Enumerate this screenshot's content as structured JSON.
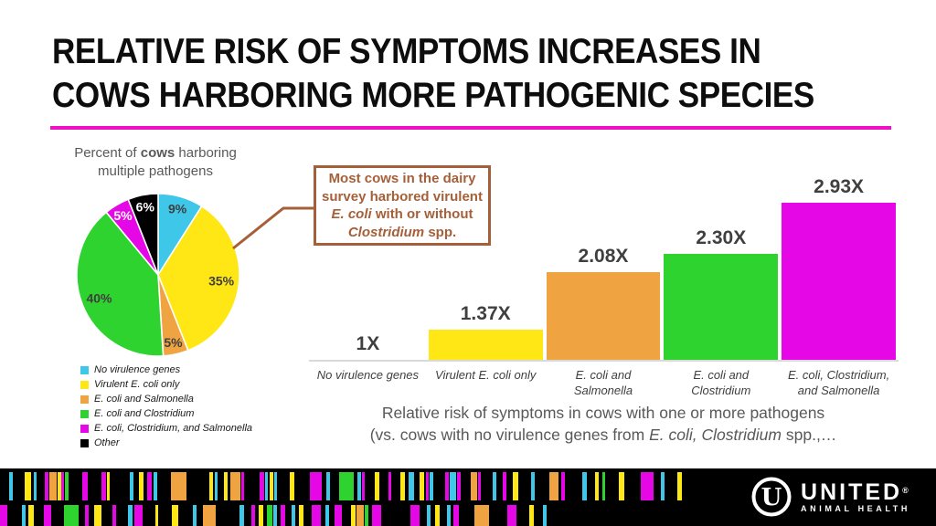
{
  "colors": {
    "cyan": "#3EC7E8",
    "yellow": "#FFE615",
    "orange": "#F0A441",
    "green": "#2FD32F",
    "magenta": "#E607E6",
    "black": "#000000",
    "brown": "#A5603A",
    "underline": "#F00FC4",
    "title_text": "#0D0D0D",
    "gray_text": "#595959",
    "dark_text": "#3F3F3F",
    "baseline": "#D9D9D9",
    "footer_bg": "#000000",
    "white": "#FFFFFF"
  },
  "title": {
    "line1": "RELATIVE RISK OF SYMPTOMS INCREASES IN",
    "line2": "COWS HARBORING MORE PATHOGENIC SPECIES"
  },
  "pie_title_lines": [
    [
      [
        "Percent of ",
        ""
      ],
      [
        "cows",
        "b"
      ],
      [
        " harboring",
        ""
      ]
    ],
    [
      [
        "multiple pathogens",
        ""
      ]
    ]
  ],
  "callout_lines": [
    [
      [
        "Most cows in the dairy",
        ""
      ]
    ],
    [
      [
        "survey harbored virulent",
        ""
      ]
    ],
    [
      [
        "E. coli",
        "i"
      ],
      [
        " with or without",
        ""
      ]
    ],
    [
      [
        "Clostridium",
        "i"
      ],
      [
        " spp.",
        ""
      ]
    ]
  ],
  "caption_lines": [
    [
      [
        "Relative risk of symptoms in cows with one or more pathogens",
        ""
      ]
    ],
    [
      [
        "(vs. cows with no virulence genes from ",
        ""
      ],
      [
        "E. coli, Clostridium",
        "i"
      ],
      [
        " spp.,…",
        ""
      ]
    ]
  ],
  "chart_data": [
    {
      "type": "pie",
      "title": "Percent of cows harboring multiple pathogens",
      "value_suffix": "%",
      "legend_position": "bottom-left",
      "slices": [
        {
          "label": "No virulence genes",
          "value": 9,
          "color": "cyan",
          "text_color": "#3F3F3F"
        },
        {
          "label": "Virulent E. coli only",
          "value": 35,
          "color": "yellow",
          "text_color": "#3F3F3F"
        },
        {
          "label": "E. coli and Salmonella",
          "value": 5,
          "color": "orange",
          "text_color": "#3F3F3F"
        },
        {
          "label": "E. coli and Clostridium",
          "value": 40,
          "color": "green",
          "text_color": "#3F3F3F"
        },
        {
          "label": "E. coli, Clostridium, and Salmonella",
          "value": 5,
          "color": "magenta",
          "text_color": "#FFFFFF"
        },
        {
          "label": "Other",
          "value": 6,
          "color": "black",
          "text_color": "#FFFFFF"
        }
      ]
    },
    {
      "type": "bar",
      "categories": [
        "No virulence genes",
        "Virulent E. coli only",
        "E. coli and Salmonella",
        "E. coli and Clostridium",
        "E. coli, Clostridium, and Salmonella"
      ],
      "tick_lines": [
        [
          "No virulence genes"
        ],
        [
          "Virulent E. coli only"
        ],
        [
          "E. coli and",
          "Salmonella"
        ],
        [
          "E. coli and",
          "Clostridium"
        ],
        [
          "E. coli, Clostridium,",
          "and Salmonella"
        ]
      ],
      "values": [
        1,
        1.37,
        2.08,
        2.3,
        2.93
      ],
      "value_labels": [
        "1X",
        "1.37X",
        "2.08X",
        "2.30X",
        "2.93X"
      ],
      "bar_colors": [
        null,
        "yellow",
        "orange",
        "green",
        "magenta"
      ],
      "baseline_value": 1,
      "ylim": [
        1,
        3.1
      ],
      "grid": false,
      "title": "Relative risk of symptoms in cows with one or more pathogens (vs. cows with no virulence genes from E. coli, Clostridium spp.,…"
    }
  ],
  "footer": {
    "logo": {
      "name": "UNITED",
      "reg": "®",
      "sub": "ANIMAL HEALTH",
      "monogram": "U"
    },
    "barcode_row1": [
      [
        10,
        4,
        "cyan"
      ],
      [
        27,
        7,
        "yellow"
      ],
      [
        37,
        3,
        "cyan"
      ],
      [
        49,
        4,
        "magenta"
      ],
      [
        54,
        8,
        "orange"
      ],
      [
        63,
        4,
        "yellow"
      ],
      [
        67,
        3,
        "magenta"
      ],
      [
        71,
        4,
        "green"
      ],
      [
        90,
        6,
        "magenta"
      ],
      [
        111,
        5,
        "magenta"
      ],
      [
        117,
        3,
        "yellow"
      ],
      [
        142,
        4,
        "cyan"
      ],
      [
        152,
        5,
        "yellow"
      ],
      [
        161,
        5,
        "magenta"
      ],
      [
        168,
        4,
        "cyan"
      ],
      [
        187,
        17,
        "orange"
      ],
      [
        229,
        4,
        "yellow"
      ],
      [
        235,
        3,
        "cyan"
      ],
      [
        245,
        4,
        "yellow"
      ],
      [
        252,
        11,
        "orange"
      ],
      [
        264,
        3,
        "magenta"
      ],
      [
        284,
        5,
        "magenta"
      ],
      [
        290,
        3,
        "cyan"
      ],
      [
        295,
        4,
        "yellow"
      ],
      [
        300,
        3,
        "cyan"
      ],
      [
        317,
        5,
        "yellow"
      ],
      [
        339,
        13,
        "magenta"
      ],
      [
        357,
        4,
        "cyan"
      ],
      [
        371,
        16,
        "green"
      ],
      [
        391,
        4,
        "cyan"
      ],
      [
        396,
        3,
        "magenta"
      ],
      [
        410,
        5,
        "yellow"
      ],
      [
        425,
        3,
        "magenta"
      ],
      [
        438,
        5,
        "yellow"
      ],
      [
        447,
        6,
        "cyan"
      ],
      [
        459,
        5,
        "yellow"
      ],
      [
        466,
        3,
        "magenta"
      ],
      [
        470,
        4,
        "cyan"
      ],
      [
        487,
        4,
        "magenta"
      ],
      [
        492,
        7,
        "cyan"
      ],
      [
        500,
        4,
        "magenta"
      ],
      [
        515,
        7,
        "orange"
      ],
      [
        523,
        3,
        "magenta"
      ],
      [
        539,
        4,
        "cyan"
      ],
      [
        550,
        4,
        "magenta"
      ],
      [
        561,
        6,
        "yellow"
      ],
      [
        581,
        4,
        "cyan"
      ],
      [
        601,
        10,
        "orange"
      ],
      [
        614,
        4,
        "magenta"
      ],
      [
        637,
        5,
        "cyan"
      ],
      [
        651,
        4,
        "yellow"
      ],
      [
        659,
        3,
        "green"
      ],
      [
        677,
        6,
        "yellow"
      ],
      [
        701,
        14,
        "magenta"
      ],
      [
        723,
        4,
        "cyan"
      ],
      [
        741,
        5,
        "yellow"
      ]
    ],
    "barcode_row2": [
      [
        0,
        8,
        "magenta"
      ],
      [
        24,
        4,
        "cyan"
      ],
      [
        31,
        6,
        "yellow"
      ],
      [
        48,
        8,
        "magenta"
      ],
      [
        70,
        16,
        "green"
      ],
      [
        93,
        4,
        "magenta"
      ],
      [
        103,
        8,
        "yellow"
      ],
      [
        123,
        4,
        "magenta"
      ],
      [
        140,
        5,
        "cyan"
      ],
      [
        147,
        9,
        "magenta"
      ],
      [
        170,
        3,
        "yellow"
      ],
      [
        188,
        7,
        "yellow"
      ],
      [
        211,
        4,
        "cyan"
      ],
      [
        222,
        14,
        "orange"
      ],
      [
        262,
        5,
        "cyan"
      ],
      [
        275,
        4,
        "magenta"
      ],
      [
        283,
        5,
        "yellow"
      ],
      [
        292,
        6,
        "green"
      ],
      [
        299,
        4,
        "cyan"
      ],
      [
        307,
        5,
        "magenta"
      ],
      [
        319,
        4,
        "cyan"
      ],
      [
        327,
        5,
        "yellow"
      ],
      [
        341,
        10,
        "magenta"
      ],
      [
        356,
        4,
        "cyan"
      ],
      [
        366,
        8,
        "magenta"
      ],
      [
        384,
        5,
        "yellow"
      ],
      [
        390,
        8,
        "orange"
      ],
      [
        399,
        4,
        "green"
      ],
      [
        407,
        10,
        "magenta"
      ],
      [
        449,
        10,
        "magenta"
      ],
      [
        467,
        4,
        "cyan"
      ],
      [
        476,
        5,
        "yellow"
      ],
      [
        489,
        4,
        "cyan"
      ],
      [
        496,
        6,
        "magenta"
      ],
      [
        519,
        16,
        "orange"
      ],
      [
        555,
        10,
        "magenta"
      ],
      [
        579,
        5,
        "yellow"
      ],
      [
        594,
        4,
        "cyan"
      ]
    ]
  }
}
